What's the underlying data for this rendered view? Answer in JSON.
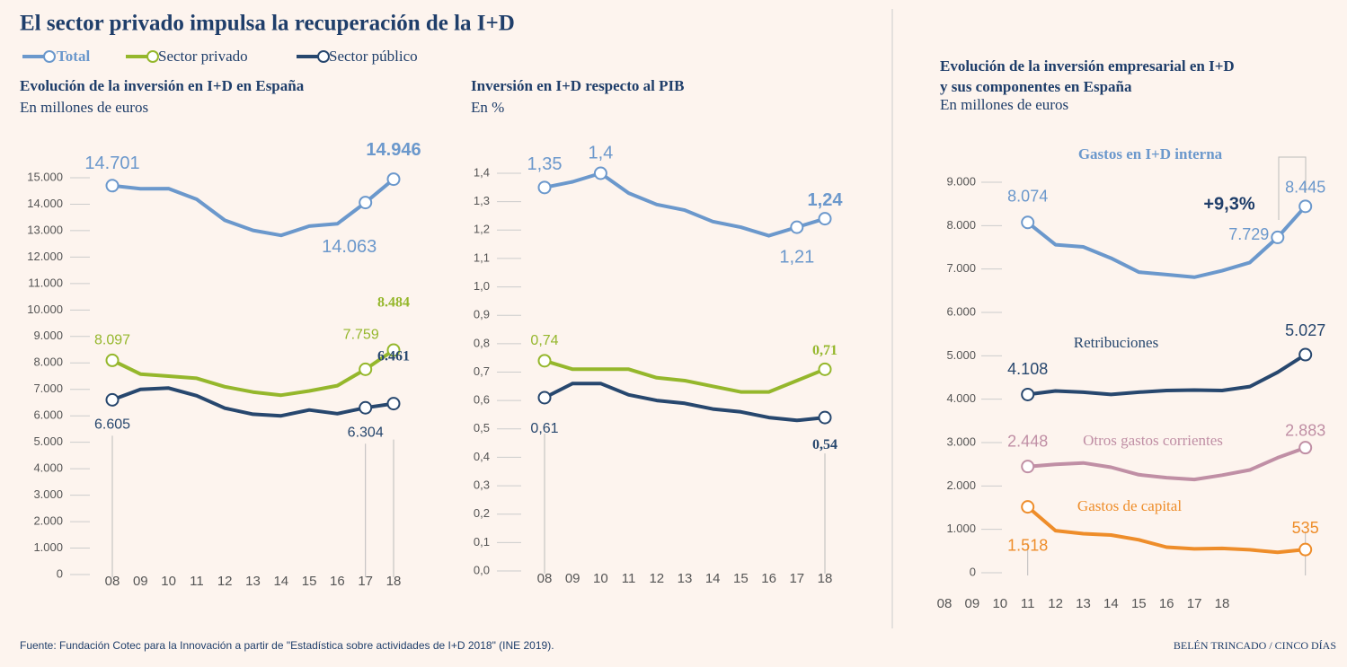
{
  "title": "El sector privado impulsa la recuperación de la I+D",
  "source": "Fuente: Fundación Cotec para la Innovación a partir de \"Estadística sobre actividades de I+D 2018\" (INE 2019).",
  "credit": "BELÉN TRINCADO / CINCO DÍAS",
  "chart_data": [
    {
      "type": "line",
      "title": "Evolución de la inversión en I+D en España",
      "subtitle": "En millones de euros",
      "categories": [
        "08",
        "09",
        "10",
        "11",
        "12",
        "13",
        "14",
        "15",
        "16",
        "17",
        "18"
      ],
      "ylim": [
        0,
        15000
      ],
      "yticks": [
        0,
        {
          "value": 1000,
          "label": "1.000"
        },
        {
          "value": 2000,
          "label": "2.000"
        },
        {
          "value": 3000,
          "label": "3.000"
        },
        {
          "value": 4000,
          "label": "4.000"
        },
        {
          "value": 5000,
          "label": "5.000"
        },
        {
          "value": 6000,
          "label": "6.000"
        },
        {
          "value": 7000,
          "label": "7.000"
        },
        {
          "value": 8000,
          "label": "8.000"
        },
        {
          "value": 9000,
          "label": "9.000"
        },
        {
          "value": 10000,
          "label": "10.000"
        },
        {
          "value": 11000,
          "label": "11.000"
        },
        {
          "value": 12000,
          "label": "12.000"
        },
        {
          "value": 13000,
          "label": "13.000"
        },
        {
          "value": 14000,
          "label": "14.000"
        },
        {
          "value": 15000,
          "label": "15.000"
        }
      ],
      "series": [
        {
          "name": "Total",
          "color": "#6b98cc",
          "values": [
            14701,
            14582,
            14588,
            14184,
            13392,
            13012,
            12821,
            13172,
            13260,
            14063,
            14946
          ],
          "value_labels": [
            "14.701",
            null,
            null,
            null,
            null,
            null,
            null,
            null,
            null,
            "14.063",
            "14.946"
          ]
        },
        {
          "name": "Sector privado",
          "color": "#95b72c",
          "values": [
            8097,
            7579,
            7500,
            7420,
            7100,
            6900,
            6780,
            6940,
            7140,
            7759,
            8484
          ],
          "value_labels": [
            "8.097",
            null,
            null,
            null,
            null,
            null,
            null,
            null,
            null,
            "7.759",
            "8.484"
          ]
        },
        {
          "name": "Sector público",
          "color": "#27476e",
          "values": [
            6605,
            7000,
            7050,
            6760,
            6290,
            6060,
            6000,
            6220,
            6080,
            6304,
            6461
          ],
          "value_labels": [
            "6.605",
            null,
            null,
            null,
            null,
            null,
            null,
            null,
            null,
            "6.304",
            "6.461"
          ]
        }
      ]
    },
    {
      "type": "line",
      "title": "Inversión en I+D respecto al PIB",
      "subtitle": "En %",
      "categories": [
        "08",
        "09",
        "10",
        "11",
        "12",
        "13",
        "14",
        "15",
        "16",
        "17",
        "18"
      ],
      "ylim": [
        0,
        1.4
      ],
      "yticks": [
        {
          "value": 0,
          "label": "0,0"
        },
        {
          "value": 0.1,
          "label": "0,1"
        },
        {
          "value": 0.2,
          "label": "0,2"
        },
        {
          "value": 0.3,
          "label": "0,3"
        },
        {
          "value": 0.4,
          "label": "0,4"
        },
        {
          "value": 0.5,
          "label": "0,5"
        },
        {
          "value": 0.6,
          "label": "0,6"
        },
        {
          "value": 0.7,
          "label": "0,7"
        },
        {
          "value": 0.8,
          "label": "0,8"
        },
        {
          "value": 0.9,
          "label": "0,9"
        },
        {
          "value": 1.0,
          "label": "1,0"
        },
        {
          "value": 1.1,
          "label": "1,1"
        },
        {
          "value": 1.2,
          "label": "1,2"
        },
        {
          "value": 1.3,
          "label": "1,3"
        },
        {
          "value": 1.4,
          "label": "1,4"
        }
      ],
      "series": [
        {
          "name": "Total",
          "color": "#6b98cc",
          "values": [
            1.35,
            1.37,
            1.4,
            1.33,
            1.29,
            1.27,
            1.23,
            1.21,
            1.18,
            1.21,
            1.24
          ],
          "value_labels": [
            "1,35",
            null,
            "1,4",
            null,
            null,
            null,
            null,
            null,
            null,
            "1,21",
            "1,24"
          ]
        },
        {
          "name": "Sector privado",
          "color": "#95b72c",
          "values": [
            0.74,
            0.71,
            0.71,
            0.71,
            0.68,
            0.67,
            0.65,
            0.63,
            0.63,
            0.67,
            0.71
          ],
          "value_labels": [
            "0,74",
            null,
            null,
            null,
            null,
            null,
            null,
            null,
            null,
            null,
            "0,71"
          ]
        },
        {
          "name": "Sector público",
          "color": "#27476e",
          "values": [
            0.61,
            0.66,
            0.66,
            0.62,
            0.6,
            0.59,
            0.57,
            0.56,
            0.54,
            0.53,
            0.54
          ],
          "value_labels": [
            "0,61",
            null,
            null,
            null,
            null,
            null,
            null,
            null,
            null,
            null,
            "0,54"
          ]
        }
      ]
    },
    {
      "type": "line",
      "title": "Evolución de la inversión empresarial en I+D y sus componentes en España",
      "subtitle": "En millones de euros",
      "categories": [
        "08",
        "09",
        "10",
        "11",
        "12",
        "13",
        "14",
        "15",
        "16",
        "17",
        "18",
        null,
        null,
        null
      ],
      "ylim": [
        0,
        9000
      ],
      "yticks": [
        0,
        {
          "value": 1000,
          "label": "1.000"
        },
        {
          "value": 2000,
          "label": "2.000"
        },
        {
          "value": 3000,
          "label": "3.000"
        },
        {
          "value": 4000,
          "label": "4.000"
        },
        {
          "value": 5000,
          "label": "5.000"
        },
        {
          "value": 6000,
          "label": "6.000"
        },
        {
          "value": 7000,
          "label": "7.000"
        },
        {
          "value": 8000,
          "label": "8.000"
        },
        {
          "value": 9000,
          "label": "9.000"
        }
      ],
      "annotation": "+9,3%",
      "series": [
        {
          "name": "Gastos en I+D interna",
          "color": "#6b98cc",
          "values": [
            null,
            null,
            null,
            8074,
            7560,
            7510,
            7250,
            6930,
            6870,
            6810,
            6960,
            7150,
            7729,
            8445
          ],
          "value_labels": [
            null,
            null,
            null,
            "8.074",
            null,
            null,
            null,
            null,
            null,
            null,
            null,
            null,
            "7.729",
            "8.445"
          ]
        },
        {
          "name": "Retribuciones",
          "color": "#27476e",
          "values": [
            null,
            null,
            null,
            4108,
            4190,
            4160,
            4110,
            4160,
            4200,
            4210,
            4200,
            4290,
            4620,
            5027
          ],
          "value_labels": [
            null,
            null,
            null,
            "4.108",
            null,
            null,
            null,
            null,
            null,
            null,
            null,
            null,
            null,
            "5.027"
          ]
        },
        {
          "name": "Otros gastos corrientes",
          "color": "#c08fa5",
          "values": [
            null,
            null,
            null,
            2448,
            2500,
            2530,
            2430,
            2260,
            2190,
            2150,
            2250,
            2370,
            2650,
            2883
          ],
          "value_labels": [
            null,
            null,
            null,
            "2.448",
            null,
            null,
            null,
            null,
            null,
            null,
            null,
            null,
            null,
            "2.883"
          ]
        },
        {
          "name": "Gastos de capital",
          "color": "#ee8d2a",
          "values": [
            null,
            null,
            null,
            1518,
            970,
            900,
            870,
            760,
            590,
            550,
            560,
            530,
            470,
            535
          ],
          "value_labels": [
            null,
            null,
            null,
            "1.518",
            null,
            null,
            null,
            null,
            null,
            null,
            null,
            null,
            null,
            "535"
          ]
        }
      ]
    }
  ]
}
